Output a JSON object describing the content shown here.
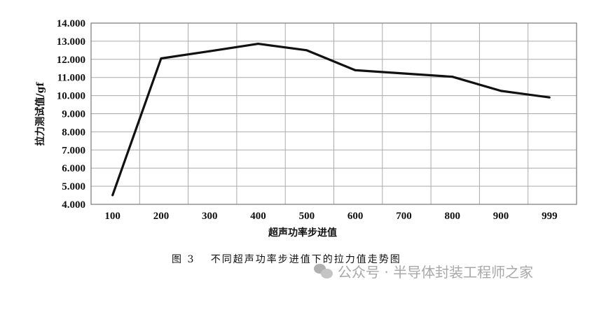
{
  "chart_data": {
    "type": "line",
    "categories": [
      "100",
      "200",
      "300",
      "400",
      "500",
      "600",
      "700",
      "800",
      "900",
      "999"
    ],
    "series": [
      {
        "values": [
          4.5,
          12.05,
          12.45,
          12.86,
          12.5,
          11.4,
          11.22,
          11.04,
          10.26,
          9.9
        ]
      }
    ],
    "xlabel": "超声功率步进值",
    "ylabel": "拉力测试值/gf",
    "ylim": [
      4,
      14
    ],
    "yticks": [
      "4.000",
      "5.000",
      "6.000",
      "7.000",
      "8.000",
      "9.000",
      "10.000",
      "11.000",
      "12.000",
      "13.000",
      "14.000"
    ],
    "grid": true,
    "line_color": "#111111",
    "grid_color": "#aaaaaa"
  },
  "caption": "图 3　 不同超声功率步进值下的拉力值走势图",
  "watermark": {
    "text": "公众号 · 半导体封装工程师之家",
    "icon": "wechat-icon"
  }
}
